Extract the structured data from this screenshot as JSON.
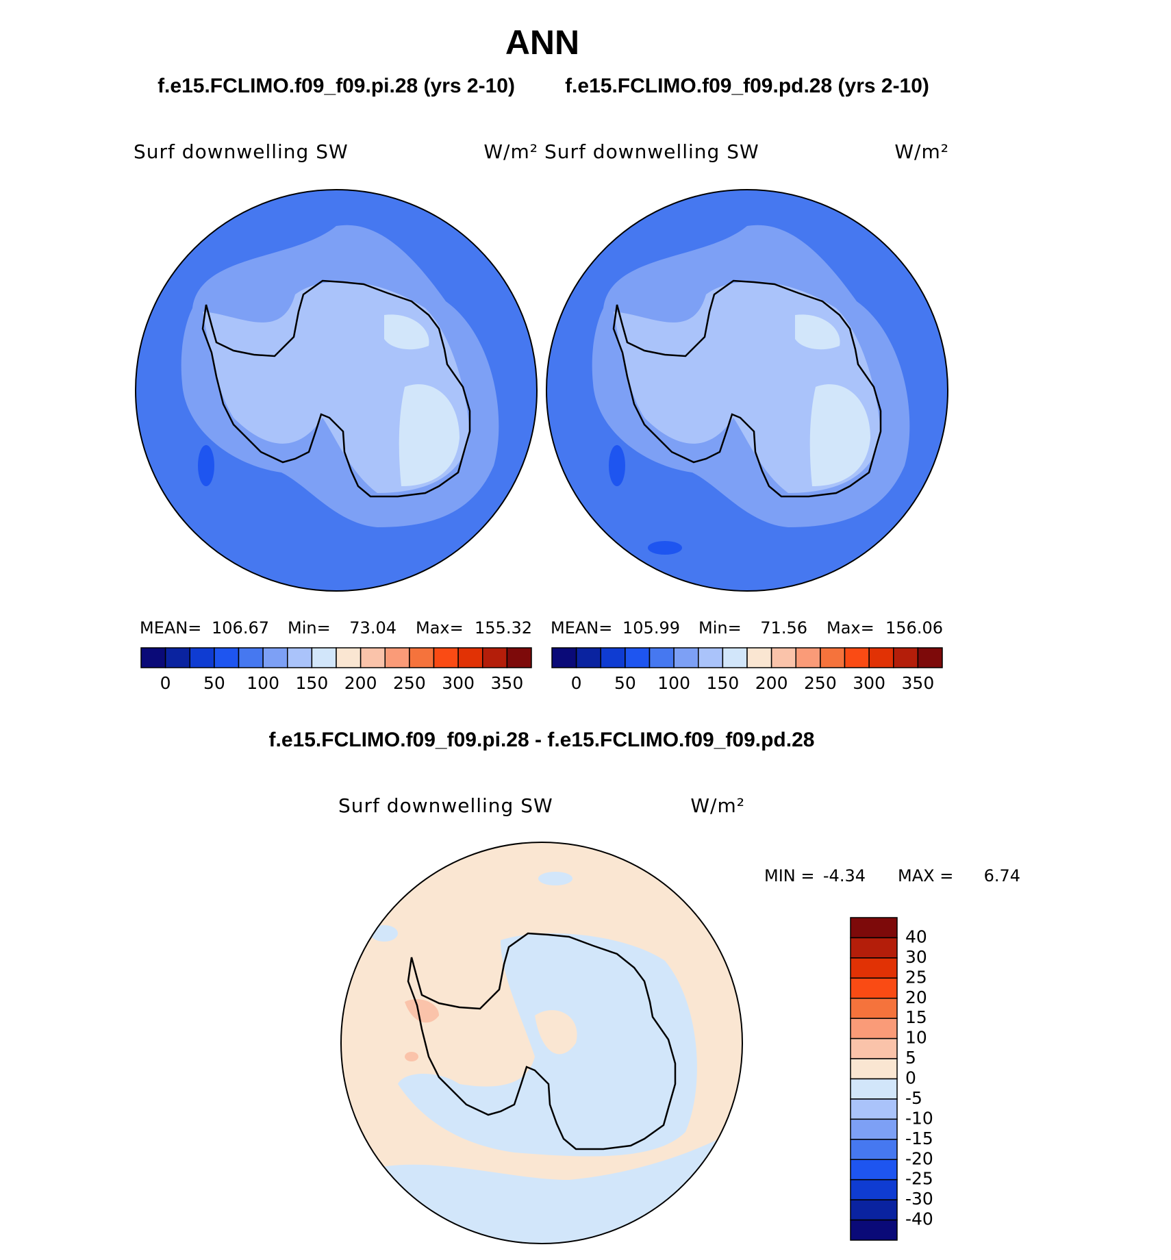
{
  "title": "ANN",
  "panels": [
    {
      "case": "f.e15.FCLIMO.f09_f09.pi.28 (yrs 2-10)",
      "variable": "Surf downwelling SW",
      "units": "W/m²",
      "mean_label": "MEAN=",
      "mean": 106.67,
      "min_label": "Min=",
      "min": 73.04,
      "max_label": "Max=",
      "max": 155.32
    },
    {
      "case": "f.e15.FCLIMO.f09_f09.pd.28 (yrs 2-10)",
      "variable": "Surf downwelling SW",
      "units": "W/m²",
      "mean_label": "MEAN=",
      "mean": 105.99,
      "min_label": "Min=",
      "min": 71.56,
      "max_label": "Max=",
      "max": 156.06
    }
  ],
  "colorbar": {
    "ticks": [
      0,
      50,
      100,
      150,
      200,
      250,
      300,
      350
    ],
    "colors": [
      "#0a0a78",
      "#0a23a0",
      "#0f3cd2",
      "#1e55f0",
      "#4678f0",
      "#7da0f5",
      "#aac3fa",
      "#d2e6fa",
      "#fae6d2",
      "#fac3aa",
      "#fa9b78",
      "#f5733c",
      "#fa4b14",
      "#e13205",
      "#b41e0a",
      "#7d0a0a"
    ]
  },
  "difference": {
    "title": "f.e15.FCLIMO.f09_f09.pi.28 - f.e15.FCLIMO.f09_f09.pd.28",
    "variable": "Surf downwelling SW",
    "units": "W/m²",
    "min_label": "MIN =",
    "min": -4.34,
    "max_label": "MAX =",
    "max": 6.74,
    "ticks": [
      40,
      30,
      25,
      20,
      15,
      10,
      5,
      0,
      -5,
      -10,
      -15,
      -20,
      -25,
      -30,
      -40
    ],
    "colors": [
      "#7d0a0a",
      "#b41e0a",
      "#e13205",
      "#fa4b14",
      "#f5733c",
      "#fa9b78",
      "#fac3aa",
      "#fae6d2",
      "#d2e6fa",
      "#aac3fa",
      "#7da0f5",
      "#4678f0",
      "#1e55f0",
      "#0f3cd2",
      "#0a23a0",
      "#0a0a78"
    ]
  }
}
